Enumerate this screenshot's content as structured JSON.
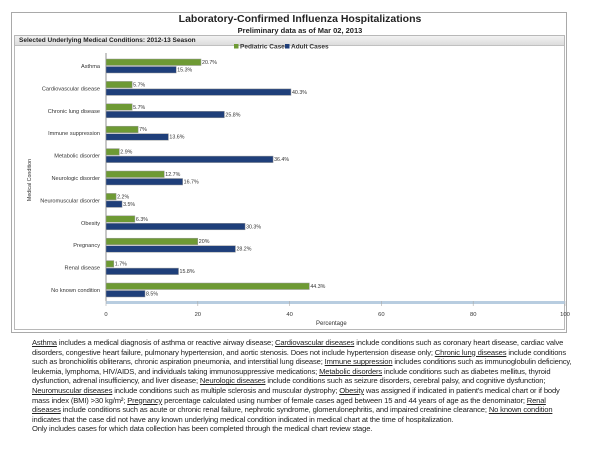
{
  "header": {
    "title": "Laboratory-Confirmed Influenza Hospitalizations",
    "subtitle": "Preliminary data as of Mar 02, 2013",
    "section_title": "Selected Underlying Medical Conditions: 2012-13 Season"
  },
  "chart_data": {
    "type": "bar",
    "orientation": "horizontal",
    "categories": [
      "Asthma",
      "Cardiovascular disease",
      "Chronic lung disease",
      "Immune suppression",
      "Metabolic disorder",
      "Neurologic disorder",
      "Neuromuscular disorder",
      "Obesity",
      "Pregnancy",
      "Renal disease",
      "No known condition"
    ],
    "series": [
      {
        "name": "Pediatric Cases",
        "color": "#6e9a34",
        "values": [
          20.7,
          5.7,
          5.7,
          7,
          2.9,
          12.7,
          2.2,
          6.3,
          20,
          1.7,
          44.3
        ],
        "labels": [
          "20.7%",
          "5.7%",
          "5.7%",
          "7%",
          "2.9%",
          "12.7%",
          "2.2%",
          "6.3%",
          "20%",
          "1.7%",
          "44.3%"
        ]
      },
      {
        "name": "Adult Cases",
        "color": "#1f3f7a",
        "values": [
          15.3,
          40.3,
          25.8,
          13.6,
          36.4,
          16.7,
          3.5,
          30.3,
          28.2,
          15.8,
          8.5
        ],
        "labels": [
          "15.3%",
          "40.3%",
          "25.8%",
          "13.6%",
          "36.4%",
          "16.7%",
          "3.5%",
          "30.3%",
          "28.2%",
          "15.8%",
          "8.5%"
        ]
      }
    ],
    "xlabel": "Percentage",
    "ylabel": "Medical Condition",
    "xlim": [
      0,
      100
    ],
    "xticks": [
      "0",
      "20",
      "40",
      "60",
      "80",
      "100"
    ],
    "legend": "top-center",
    "grid": false
  },
  "notes": [
    {
      "u": "Asthma",
      "t": " includes a medical diagnosis of asthma or reactive airway disease; "
    },
    {
      "u": "Cardiovascular diseases",
      "t": " include conditions such as coronary heart disease, cardiac valve disorders, congestive heart failure, pulmonary hypertension, and aortic stenosis.  Does not include hypertension disease only;  "
    },
    {
      "u": "Chronic lung diseases",
      "t": " include conditions such as bronchiolitis obliterans, chronic aspiration pneumonia, and interstitial lung disease;  "
    },
    {
      "u": "Immune suppression",
      "t": " includes conditions such as immunoglobulin deficiency, leukemia, lymphoma, HIV/AIDS, and individuals taking immunosuppressive medications;  "
    },
    {
      "u": "Metabolic disorders",
      "t": " include conditions such as diabetes mellitus, thyroid dysfunction, adrenal insufficiency, and liver disease;  "
    },
    {
      "u": "Neurologic diseases",
      "t": " include conditions such as seizure disorders, cerebral palsy, and cognitive dysfunction;  "
    },
    {
      "u": "Neuromuscular diseases",
      "t": " include conditions such as multiple sclerosis and muscular dystrophy;  "
    },
    {
      "u": "Obesity",
      "t": " was assigned if indicated in patient's medical chart or if body mass index (BMI) >30 kg/m²;  "
    },
    {
      "u": "Pregnancy",
      "t": " percentage calculated using number of female cases aged between 15 and 44 years of age as the denominator;  "
    },
    {
      "u": "Renal diseases",
      "t": " include conditions such as acute or chronic renal failure, nephrotic syndrome, glomerulonephritis, and impaired creatinine clearance;  "
    },
    {
      "u": "No known condition",
      "t": " indicates that the case did not have any known underlying medical condition indicated in medical chart at the time of hospitalization."
    }
  ],
  "footer_note": "Only includes cases for which data collection has been completed through the medical chart review stage."
}
